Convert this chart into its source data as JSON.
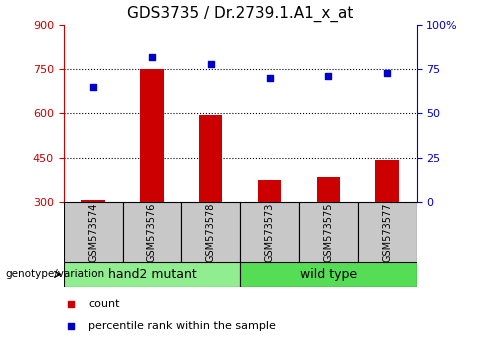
{
  "title": "GDS3735 / Dr.2739.1.A1_x_at",
  "samples": [
    "GSM573574",
    "GSM573576",
    "GSM573578",
    "GSM573573",
    "GSM573575",
    "GSM573577"
  ],
  "counts": [
    305,
    750,
    595,
    375,
    385,
    440
  ],
  "percentiles": [
    65,
    82,
    78,
    70,
    71,
    73
  ],
  "bar_color": "#cc0000",
  "scatter_color": "#0000cc",
  "ylim_left": [
    300,
    900
  ],
  "ylim_right": [
    0,
    100
  ],
  "yticks_left": [
    300,
    450,
    600,
    750,
    900
  ],
  "yticks_right": [
    0,
    25,
    50,
    75,
    100
  ],
  "yticklabels_right": [
    "0",
    "25",
    "50",
    "75",
    "100%"
  ],
  "hlines": [
    450,
    600,
    750
  ],
  "groups": [
    {
      "label": "hand2 mutant",
      "indices": [
        0,
        1,
        2
      ],
      "color": "#90ee90"
    },
    {
      "label": "wild type",
      "indices": [
        3,
        4,
        5
      ],
      "color": "#55dd55"
    }
  ],
  "genotype_label": "genotype/variation",
  "legend_count": "count",
  "legend_percentile": "percentile rank within the sample",
  "title_fontsize": 11,
  "axis_color_left": "#cc0000",
  "axis_color_right": "#0000cc",
  "bar_width": 0.4,
  "sample_area_color": "#c8c8c8"
}
